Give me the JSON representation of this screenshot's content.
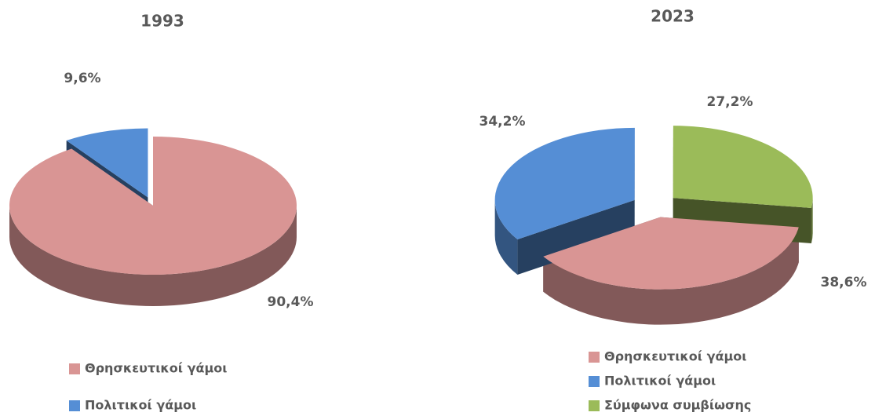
{
  "chart_data": [
    {
      "type": "pie",
      "title": "1993",
      "categories": [
        "Θρησκευτικοί γάμοι",
        "Πολιτικοί γάμοι"
      ],
      "values": [
        90.4,
        9.6
      ],
      "value_labels": [
        "90,4%",
        "9,6%"
      ],
      "colors": [
        "#d99594",
        "#558ed5"
      ]
    },
    {
      "type": "pie",
      "title": "2023",
      "categories": [
        "Θρησκευτικοί γάμοι",
        "Πολιτικοί γάμοι",
        "Σύμφωνα συμβίωσης"
      ],
      "values": [
        38.6,
        34.2,
        27.2
      ],
      "value_labels": [
        "38,6%",
        "34,2%",
        "27,2%"
      ],
      "colors": [
        "#d99594",
        "#558ed5",
        "#9bbb59"
      ]
    }
  ]
}
